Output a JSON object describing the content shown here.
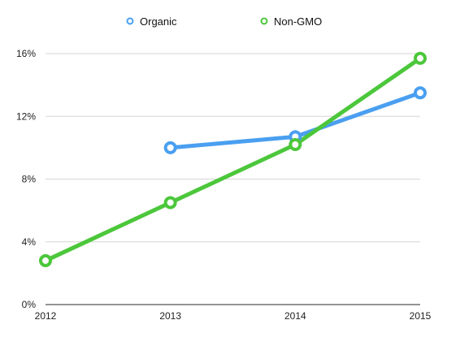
{
  "chart_data": {
    "type": "line",
    "x": [
      "2012",
      "2013",
      "2014",
      "2015"
    ],
    "y_ticks": [
      "0%",
      "4%",
      "8%",
      "12%",
      "16%"
    ],
    "ylim": [
      0,
      16
    ],
    "grid": true,
    "legend_position": "top-center",
    "series": [
      {
        "name": "Organic",
        "color": "#4a9ff0",
        "values": [
          null,
          10.0,
          10.7,
          13.5
        ]
      },
      {
        "name": "Non-GMO",
        "color": "#4cc73b",
        "values": [
          2.8,
          6.5,
          10.2,
          15.7
        ]
      }
    ]
  }
}
